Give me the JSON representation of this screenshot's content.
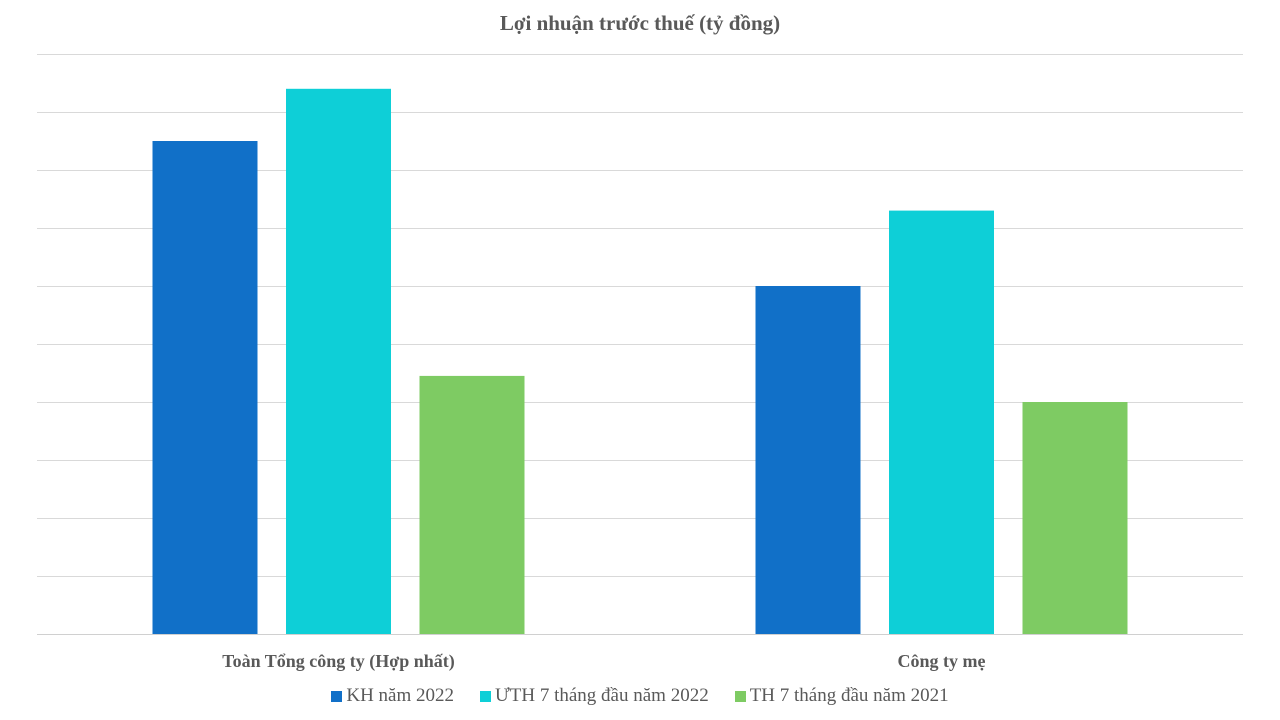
{
  "chart_data": {
    "type": "bar",
    "title": "Lợi nhuận trước thuế (tỷ đồng)",
    "xlabel": "",
    "ylabel": "",
    "ylim": [
      0,
      10
    ],
    "grid": true,
    "legend_position": "bottom",
    "categories": [
      "Toàn Tổng công ty (Hợp nhất)",
      "Công ty mẹ"
    ],
    "series": [
      {
        "name": "KH năm 2022",
        "color": "#1170C8",
        "values": [
          8.5,
          6.0
        ]
      },
      {
        "name": "ƯTH 7 tháng đầu năm 2022",
        "color": "#0ECFD7",
        "values": [
          9.4,
          7.3
        ]
      },
      {
        "name": "TH 7 tháng đầu năm 2021",
        "color": "#7ECB63",
        "values": [
          4.45,
          4.0
        ]
      }
    ]
  }
}
